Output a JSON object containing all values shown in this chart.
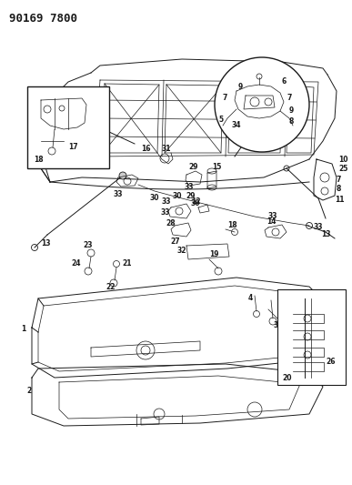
{
  "title": "90169 7800",
  "bg_color": "#ffffff",
  "line_color": "#1a1a1a",
  "gray_color": "#888888",
  "label_fontsize": 5.5,
  "label_fontweight": "bold",
  "title_fontsize": 9,
  "fig_w": 3.87,
  "fig_h": 5.33,
  "dpi": 100
}
